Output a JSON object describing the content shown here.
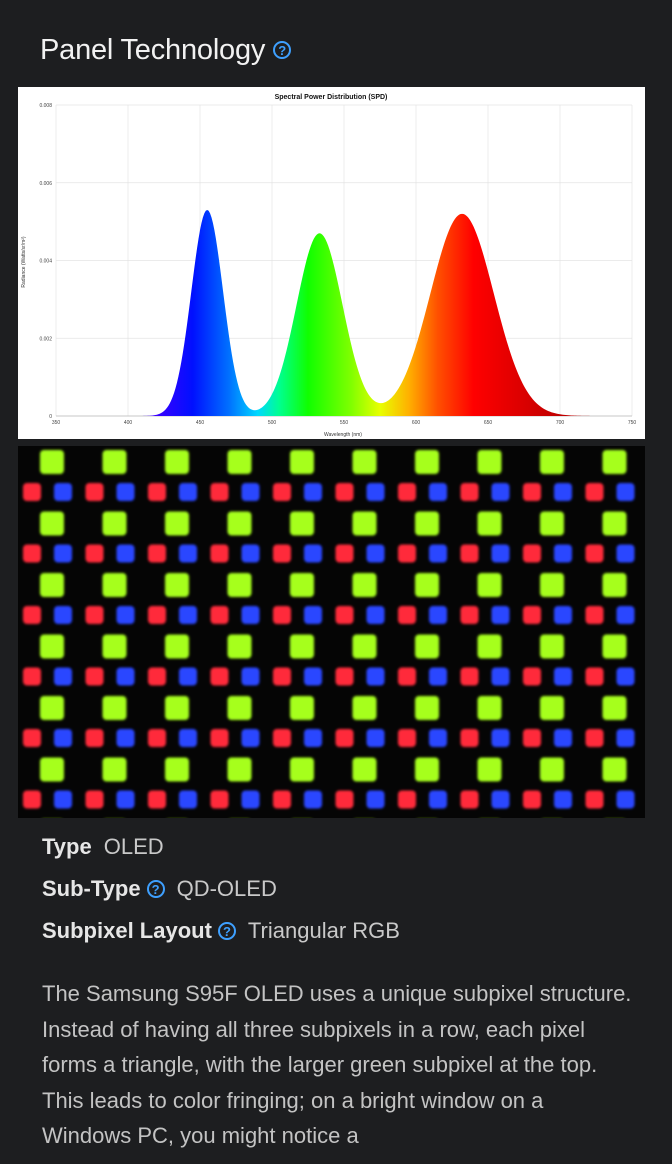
{
  "section": {
    "title": "Panel Technology",
    "help_icon": "question-circle-icon"
  },
  "chart_data": {
    "type": "area",
    "title": "Spectral Power Distribution (SPD)",
    "xlabel": "Wavelength (nm)",
    "ylabel": "Radiance (Watts/sr/m²)",
    "xlim": [
      350,
      750
    ],
    "ylim": [
      0,
      0.008
    ],
    "x_ticks": [
      "350",
      "400",
      "450",
      "500",
      "550",
      "600",
      "650",
      "700",
      "750"
    ],
    "y_ticks": [
      "0",
      "0.002",
      "0.004",
      "0.006",
      "0.008"
    ],
    "grid": true,
    "peaks": [
      {
        "name": "Blue",
        "center": 455,
        "peak": 0.0053,
        "width": 11,
        "color": "#0a2cff"
      },
      {
        "name": "Green",
        "center": 533,
        "peak": 0.0047,
        "width": 16,
        "color": "#20d000"
      },
      {
        "name": "Red",
        "center": 632,
        "peak": 0.0052,
        "width": 22,
        "color": "#ff1a00"
      }
    ]
  },
  "subpixel_image": {
    "colors": {
      "red": "#ff2a3a",
      "green": "#a6ff1e",
      "blue": "#2b46ff"
    }
  },
  "specs": [
    {
      "label": "Type",
      "value": "OLED",
      "help": false
    },
    {
      "label": "Sub-Type",
      "value": "QD-OLED",
      "help": true
    },
    {
      "label": "Subpixel Layout",
      "value": "Triangular RGB",
      "help": true
    }
  ],
  "description": "The Samsung S95F OLED uses a unique subpixel structure. Instead of having all three subpixels in a row, each pixel forms a triangle, with the larger green subpixel at the top. This leads to color fringing; on a bright window on a Windows PC, you might notice a"
}
